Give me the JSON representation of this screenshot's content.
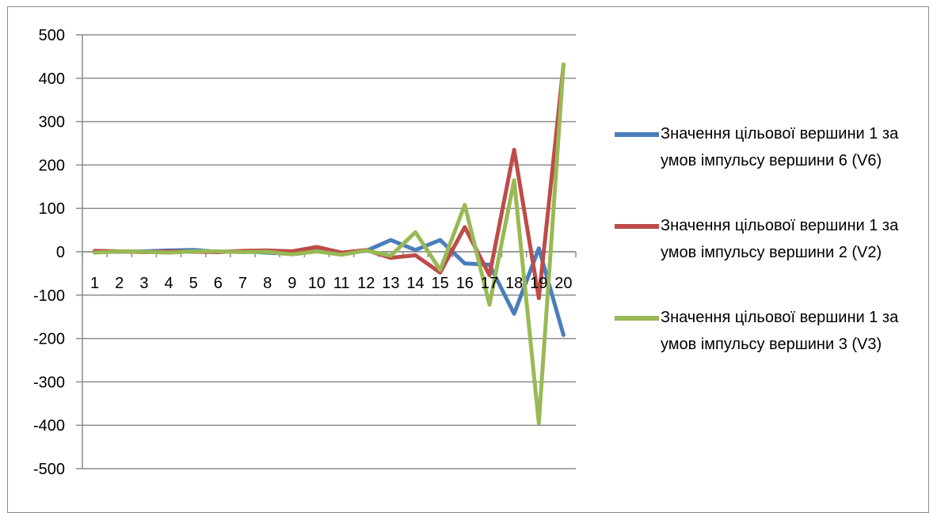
{
  "chart_data": {
    "type": "line",
    "categories": [
      "1",
      "2",
      "3",
      "4",
      "5",
      "6",
      "7",
      "8",
      "9",
      "10",
      "11",
      "12",
      "13",
      "14",
      "15",
      "16",
      "17",
      "18",
      "19",
      "20"
    ],
    "ylim": [
      -500,
      500
    ],
    "yticks": [
      500,
      400,
      300,
      200,
      100,
      0,
      -100,
      -200,
      -300,
      -400,
      -500
    ],
    "grid": true,
    "legend_position": "right",
    "series": [
      {
        "name": "Значення цільової вершини 1 за умов імпульсу вершини 6 (V6)",
        "color": "#4a7ebb",
        "values": [
          0,
          0,
          1,
          3,
          4,
          0,
          1,
          -2,
          -5,
          3,
          -3,
          2,
          27,
          4,
          27,
          -27,
          -30,
          -143,
          8,
          -192
        ]
      },
      {
        "name": "Значення цільової вершини 1 за умов імпульсу вершини 2 (V2)",
        "color": "#be4b48",
        "values": [
          2,
          1,
          -1,
          1,
          0,
          -1,
          2,
          3,
          1,
          11,
          -2,
          4,
          -14,
          -8,
          -48,
          57,
          -54,
          235,
          -107,
          430
        ]
      },
      {
        "name": "Значення цільової вершини 1 за умов імпульсу вершини 3 (V3)",
        "color": "#98b954",
        "values": [
          -2,
          1,
          0,
          -2,
          1,
          1,
          -1,
          0,
          -6,
          1,
          -7,
          3,
          -9,
          45,
          -42,
          108,
          -122,
          165,
          -395,
          432
        ]
      }
    ]
  }
}
